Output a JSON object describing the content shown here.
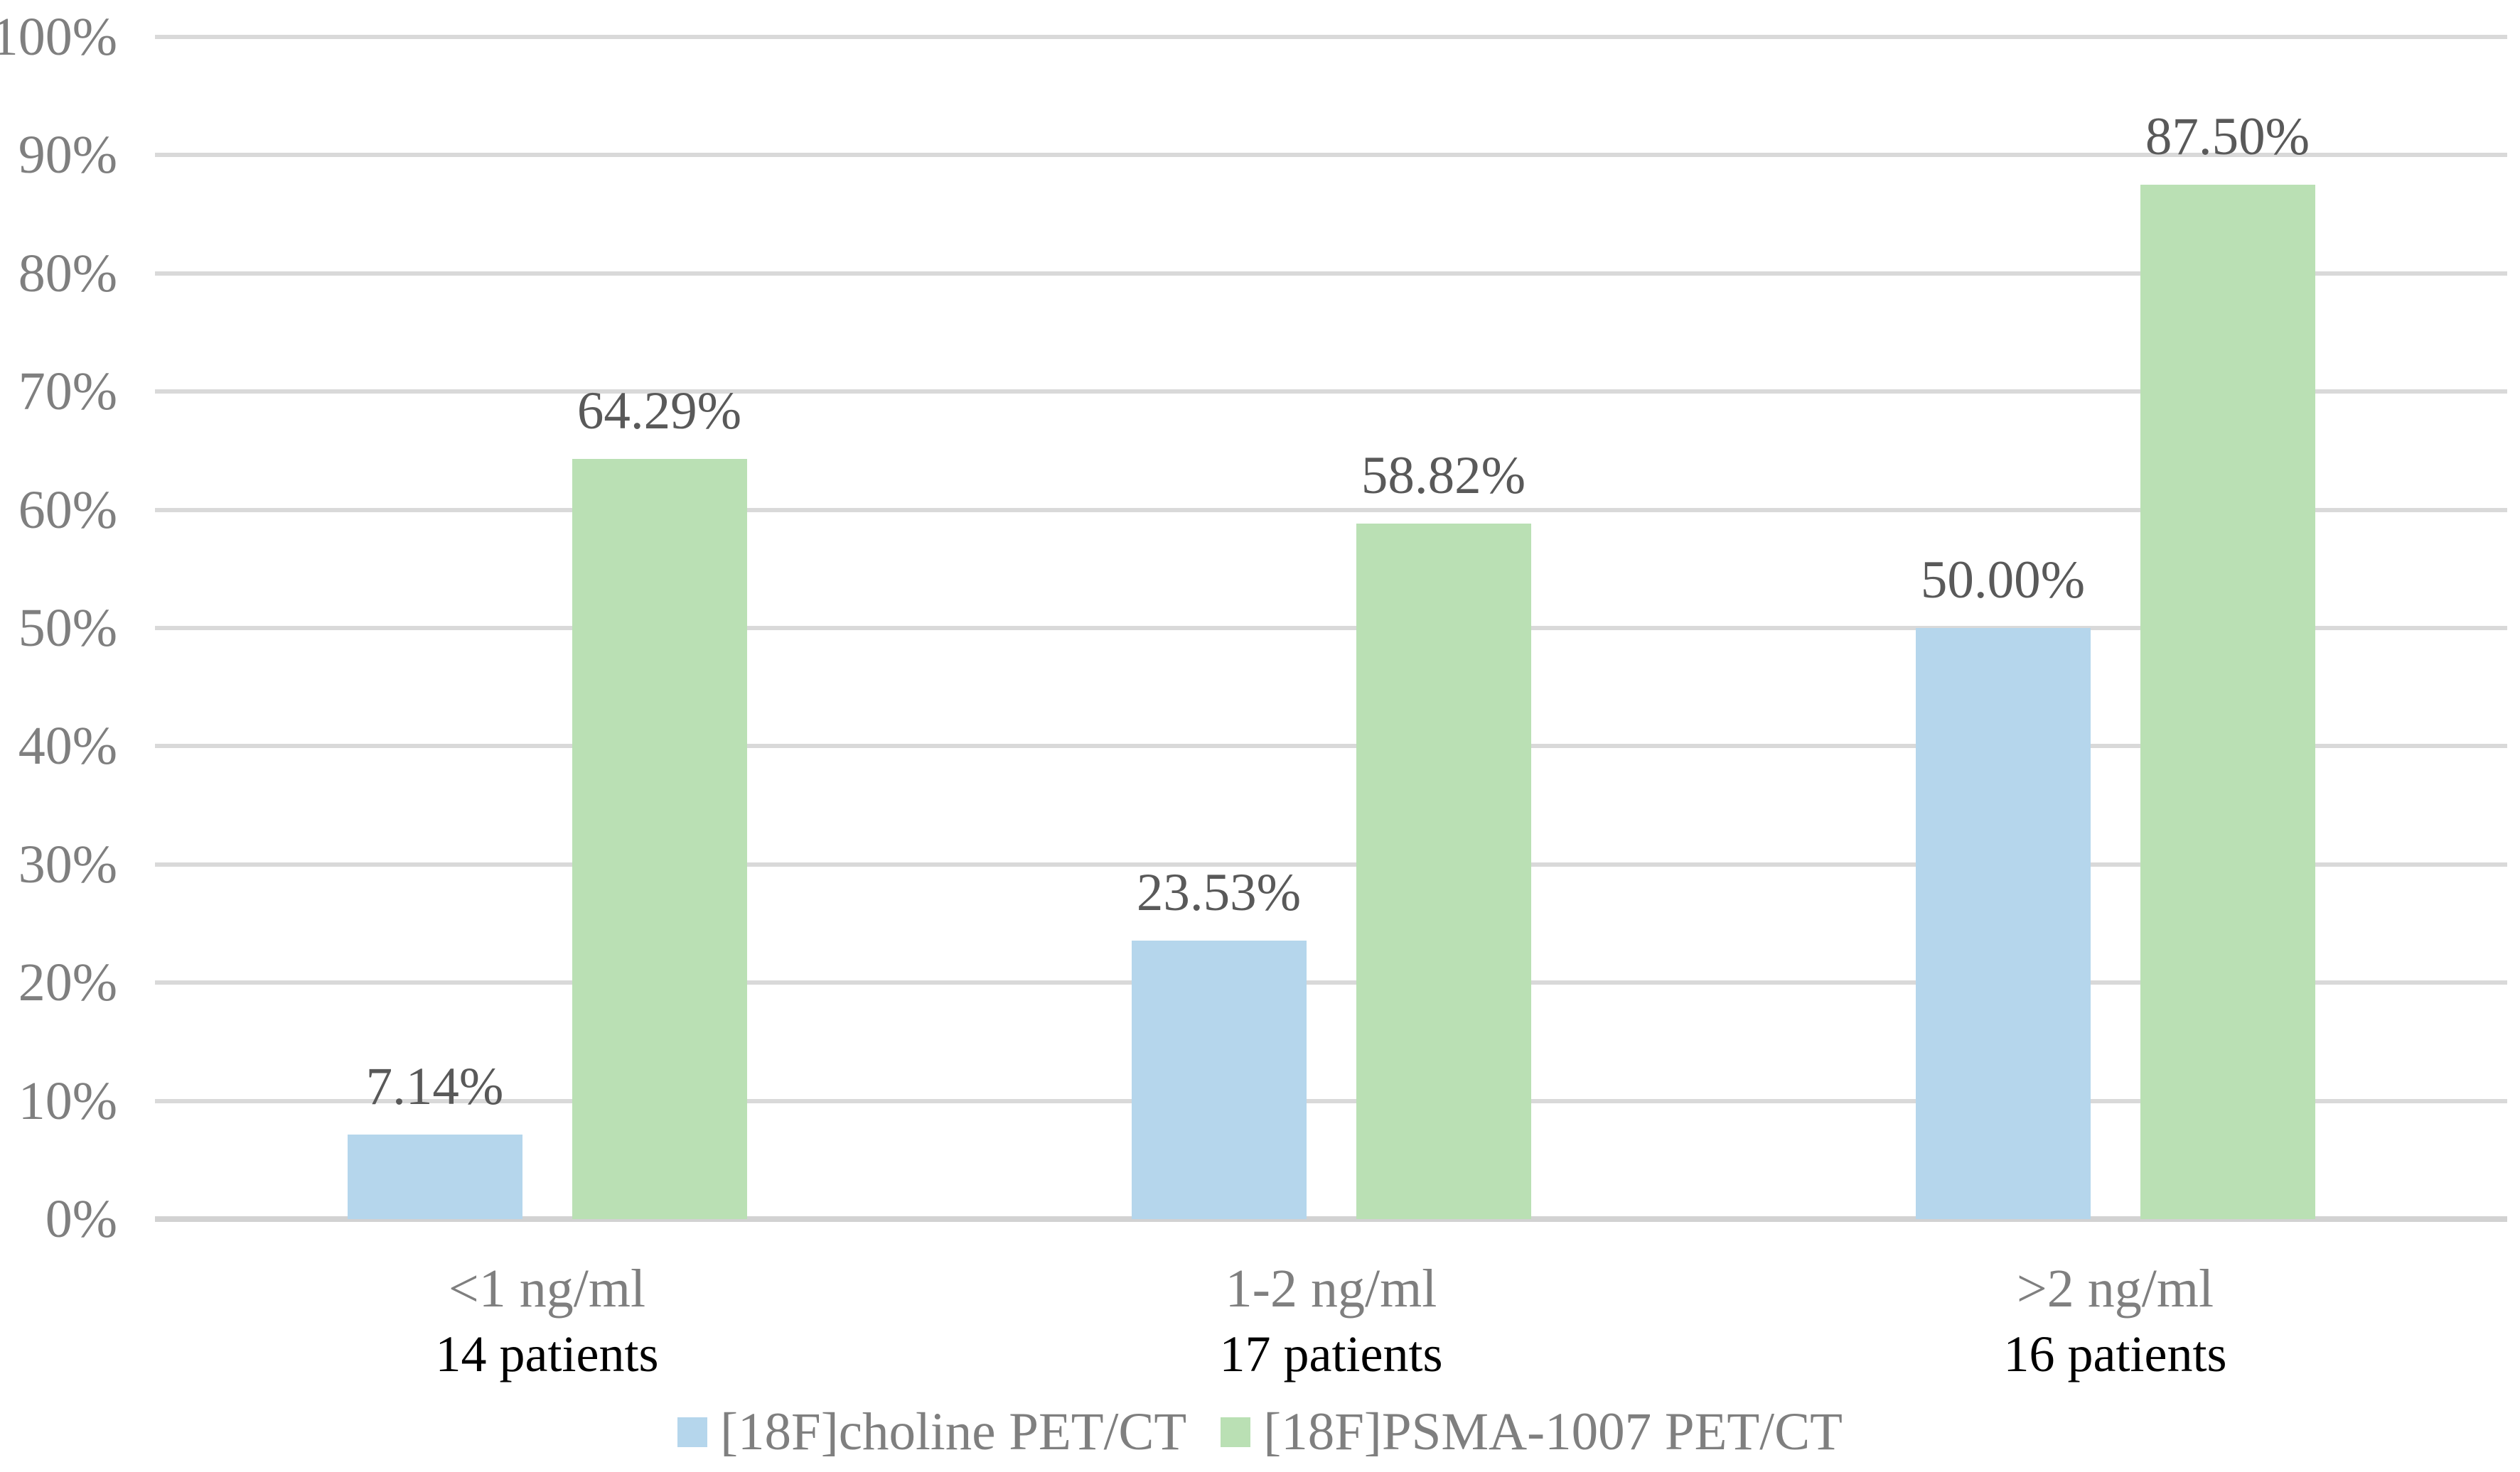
{
  "chart_data": {
    "type": "bar",
    "title": "",
    "xlabel": "",
    "ylabel": "",
    "categories": [
      {
        "label": "<1 ng/ml",
        "sublabel": "14 patients"
      },
      {
        "label": "1-2 ng/ml",
        "sublabel": "17 patients"
      },
      {
        "label": ">2 ng/ml",
        "sublabel": "16 patients"
      }
    ],
    "series": [
      {
        "name": "[18F]choline PET/CT",
        "color": "#B5D6EC",
        "values": [
          7.14,
          23.53,
          50.0
        ],
        "data_labels": [
          "7.14%",
          "23.53%",
          "50.00%"
        ]
      },
      {
        "name": "[18F]PSMA-1007 PET/CT",
        "color": "#BAE0B4",
        "values": [
          64.29,
          58.82,
          87.5
        ],
        "data_labels": [
          "64.29%",
          "58.82%",
          "87.50%"
        ]
      }
    ],
    "y_axis": {
      "min": 0,
      "max": 100,
      "step": 10,
      "tick_labels": [
        "0%",
        "10%",
        "20%",
        "30%",
        "40%",
        "50%",
        "60%",
        "70%",
        "80%",
        "90%",
        "100%"
      ]
    },
    "grid": true,
    "legend_position": "bottom",
    "colors": {
      "background": "#FFFFFF",
      "gridline": "#D9D9D9",
      "axis_line": "#D2D2D2",
      "tick_text": "#7F7F7F",
      "data_label_text": "#595959",
      "category_text": "#7F7F7F",
      "sublabel_text": "#000000",
      "legend_text": "#7F7F7F"
    }
  }
}
